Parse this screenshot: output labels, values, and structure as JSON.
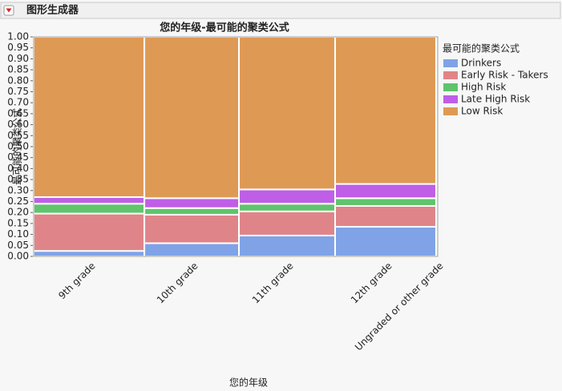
{
  "app": {
    "title": "图形生成器"
  },
  "chart_data": {
    "type": "mosaic",
    "title": "您的年级-最可能的聚类公式",
    "x_label": "您的年级",
    "y_label": "最可能的聚类公式",
    "legend_title": "最可能的聚类公式",
    "categories": [
      "9th grade",
      "10th grade",
      "11th grade",
      "12th grade",
      "Ungraded or other grade"
    ],
    "widths": [
      0.274,
      0.234,
      0.238,
      0.25,
      0.004
    ],
    "series": [
      {
        "name": "Drinkers",
        "color": "#7fa3e6",
        "values": [
          0.025,
          0.06,
          0.095,
          0.135,
          0.1
        ]
      },
      {
        "name": "Early Risk - Takers",
        "color": "#df8589",
        "values": [
          0.17,
          0.13,
          0.11,
          0.095,
          0.1
        ]
      },
      {
        "name": "High Risk",
        "color": "#5fc46c",
        "values": [
          0.045,
          0.03,
          0.035,
          0.035,
          0.05
        ]
      },
      {
        "name": "Late High Risk",
        "color": "#bf5ee6",
        "values": [
          0.03,
          0.045,
          0.065,
          0.065,
          0
        ]
      },
      {
        "name": "Low Risk",
        "color": "#de9a55",
        "values": [
          0.73,
          0.735,
          0.695,
          0.67,
          0.75
        ]
      }
    ],
    "ylim": [
      0,
      1
    ],
    "yticks": [
      {
        "value": 0,
        "label": "0.00"
      },
      {
        "value": 0.05,
        "label": "0.05"
      },
      {
        "value": 0.1,
        "label": "0.10"
      },
      {
        "value": 0.15,
        "label": "0.15"
      },
      {
        "value": 0.2,
        "label": "0.20"
      },
      {
        "value": 0.25,
        "label": "0.25"
      },
      {
        "value": 0.3,
        "label": "0.30"
      },
      {
        "value": 0.35,
        "label": "0.35"
      },
      {
        "value": 0.4,
        "label": "0.40"
      },
      {
        "value": 0.45,
        "label": "0.45"
      },
      {
        "value": 0.5,
        "label": "0.50"
      },
      {
        "value": 0.55,
        "label": "0.55"
      },
      {
        "value": 0.6,
        "label": "0.60"
      },
      {
        "value": 0.65,
        "label": "0.65"
      },
      {
        "value": 0.7,
        "label": "0.70"
      },
      {
        "value": 0.75,
        "label": "0.75"
      },
      {
        "value": 0.8,
        "label": "0.80"
      },
      {
        "value": 0.85,
        "label": "0.85"
      },
      {
        "value": 0.9,
        "label": "0.90"
      },
      {
        "value": 0.95,
        "label": "0.95"
      },
      {
        "value": 1,
        "label": "1.00"
      }
    ],
    "legend_position": "right"
  }
}
